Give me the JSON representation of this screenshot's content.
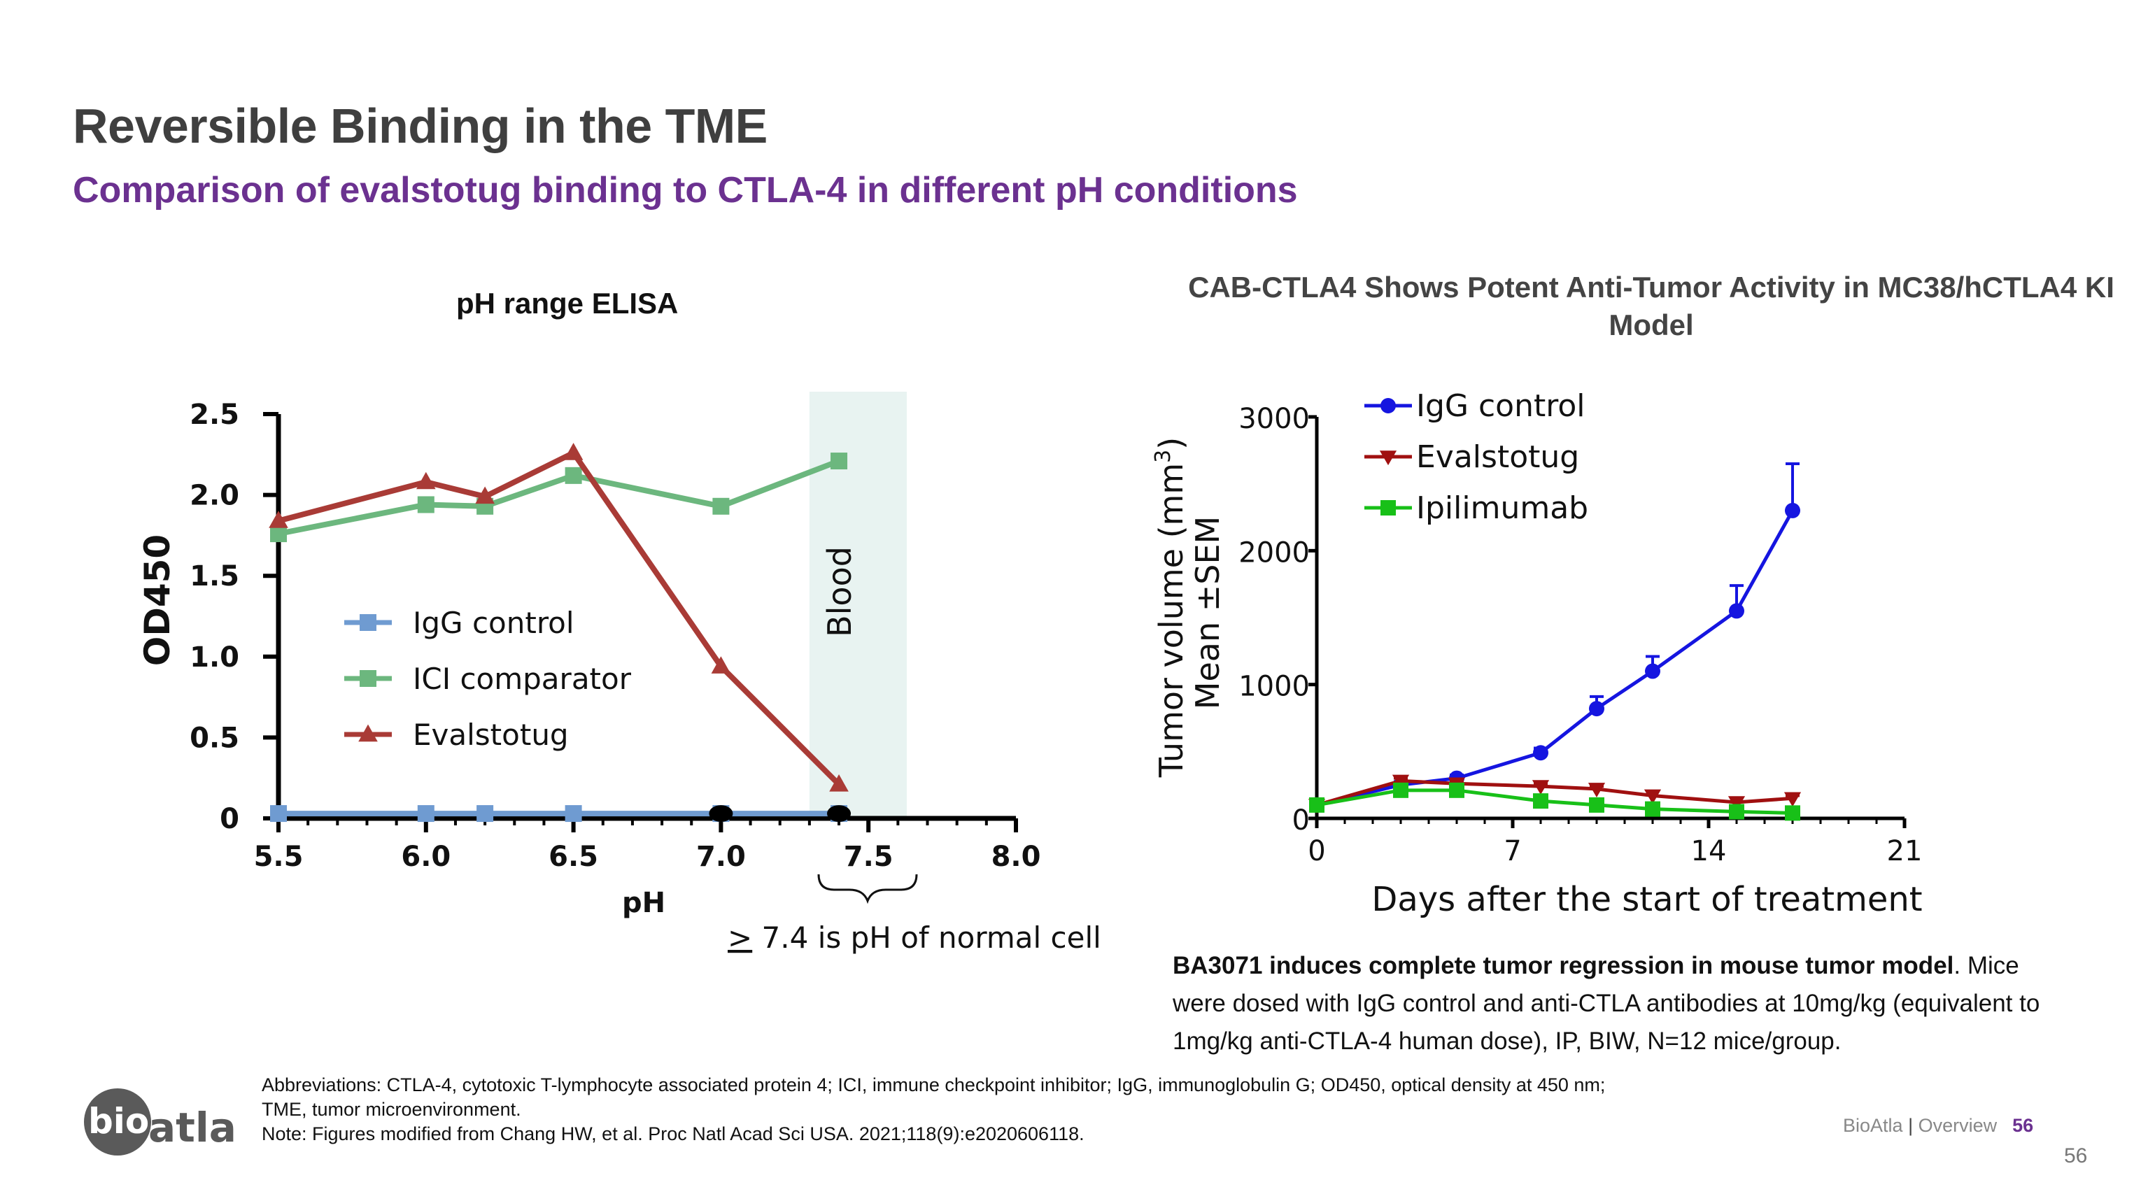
{
  "slide": {
    "title": "Reversible Binding in the TME",
    "subtitle": "Comparison of evalstotug binding to CTLA-4 in different pH conditions",
    "caption_bold": "BA3071 induces complete tumor regression in mouse tumor model",
    "caption_rest": ". Mice were dosed with IgG control and anti-CTLA antibodies at 10mg/kg (equivalent to 1mg/kg anti-CTLA-4 human dose), IP, BIW, N=12 mice/group.",
    "footnote1": "Abbreviations: CTLA-4, cytotoxic T-lymphocyte associated protein 4; ICI, immune checkpoint inhibitor; IgG, immunoglobulin G; OD450, optical density at 450 nm;",
    "footnote2": "TME, tumor microenvironment.",
    "footnote3": "Note:  Figures modified from Chang HW, et al. Proc Natl Acad Sci USA. 2021;118(9):e2020606118.",
    "footer_brand": "BioAtla",
    "footer_sep": "|",
    "footer_section": "Overview",
    "footer_page": "56",
    "corner_page": "56",
    "logo_text_1": "bio",
    "logo_text_2": "atla"
  },
  "colors": {
    "igg": "#6f9bd1",
    "ici": "#6cb77e",
    "evalstotug": "#a93b36",
    "blood_band": "#e8f3f1",
    "c2_igg": "#1515e0",
    "c2_eval": "#a01010",
    "c2_ipi": "#18c018"
  },
  "chart_data": [
    {
      "type": "line",
      "title": "pH range ELISA",
      "xlabel": "pH",
      "ylabel": "OD450",
      "xlim": [
        5.5,
        8.0
      ],
      "ylim": [
        0,
        2.5
      ],
      "x_ticks": [
        "5.5",
        "6.0",
        "6.5",
        "7.0",
        "7.5",
        "8.0"
      ],
      "y_ticks": [
        "0",
        "0.5",
        "1.0",
        "1.5",
        "2.0",
        "2.5"
      ],
      "shaded_region": {
        "x": [
          7.3,
          7.63
        ],
        "label": "Blood"
      },
      "annotation": {
        "prefix": ">",
        "text": " 7.4 is pH of normal cell"
      },
      "legend_position": "center-left",
      "series": [
        {
          "name": "IgG control",
          "marker": "square",
          "x": [
            5.5,
            6.0,
            6.2,
            6.5,
            7.0,
            7.4
          ],
          "y": [
            0.03,
            0.03,
            0.03,
            0.03,
            0.03,
            0.03
          ]
        },
        {
          "name": "ICI comparator",
          "marker": "square",
          "x": [
            5.5,
            6.0,
            6.2,
            6.5,
            7.0,
            7.4
          ],
          "y": [
            1.76,
            1.94,
            1.93,
            2.12,
            1.93,
            2.21
          ]
        },
        {
          "name": "Evalstotug",
          "marker": "triangle",
          "x": [
            5.5,
            6.0,
            6.2,
            6.5,
            7.0,
            7.4
          ],
          "y": [
            1.84,
            2.08,
            1.99,
            2.26,
            0.94,
            0.21
          ]
        }
      ],
      "black_points": {
        "x": [
          7.0,
          7.4
        ],
        "y": [
          0.03,
          0.03
        ]
      }
    },
    {
      "type": "line",
      "title": "CAB-CTLA4 Shows Potent Anti-Tumor Activity in MC38/hCTLA4 KI Model",
      "xlabel": "Days after the start of treatment",
      "ylabel_line1": "Tumor volume (mm",
      "ylabel_sup": "3",
      "ylabel_close": ")",
      "ylabel_line2": "Mean ±SEM",
      "xlim": [
        0,
        21
      ],
      "ylim": [
        0,
        3000
      ],
      "x_ticks": [
        "0",
        "7",
        "14",
        "21"
      ],
      "y_ticks": [
        "0",
        "1000",
        "2000",
        "3000"
      ],
      "legend_position": "top-left",
      "series": [
        {
          "name": "IgG control",
          "marker": "circle",
          "x": [
            0,
            3,
            5,
            8,
            10,
            12,
            15,
            17
          ],
          "y": [
            100,
            250,
            300,
            490,
            820,
            1100,
            1550,
            2300
          ],
          "sem": [
            10,
            25,
            25,
            35,
            90,
            110,
            190,
            350
          ]
        },
        {
          "name": "Evalstotug",
          "marker": "triangle-down",
          "x": [
            0,
            3,
            5,
            8,
            10,
            12,
            15,
            17
          ],
          "y": [
            100,
            280,
            260,
            240,
            220,
            170,
            120,
            150
          ],
          "sem": [
            10,
            20,
            20,
            20,
            20,
            15,
            15,
            20
          ]
        },
        {
          "name": "Ipilimumab",
          "marker": "square",
          "x": [
            0,
            3,
            5,
            8,
            10,
            12,
            15,
            17
          ],
          "y": [
            100,
            210,
            210,
            130,
            100,
            70,
            50,
            40
          ],
          "sem": [
            10,
            20,
            20,
            15,
            15,
            10,
            10,
            10
          ]
        }
      ]
    }
  ]
}
